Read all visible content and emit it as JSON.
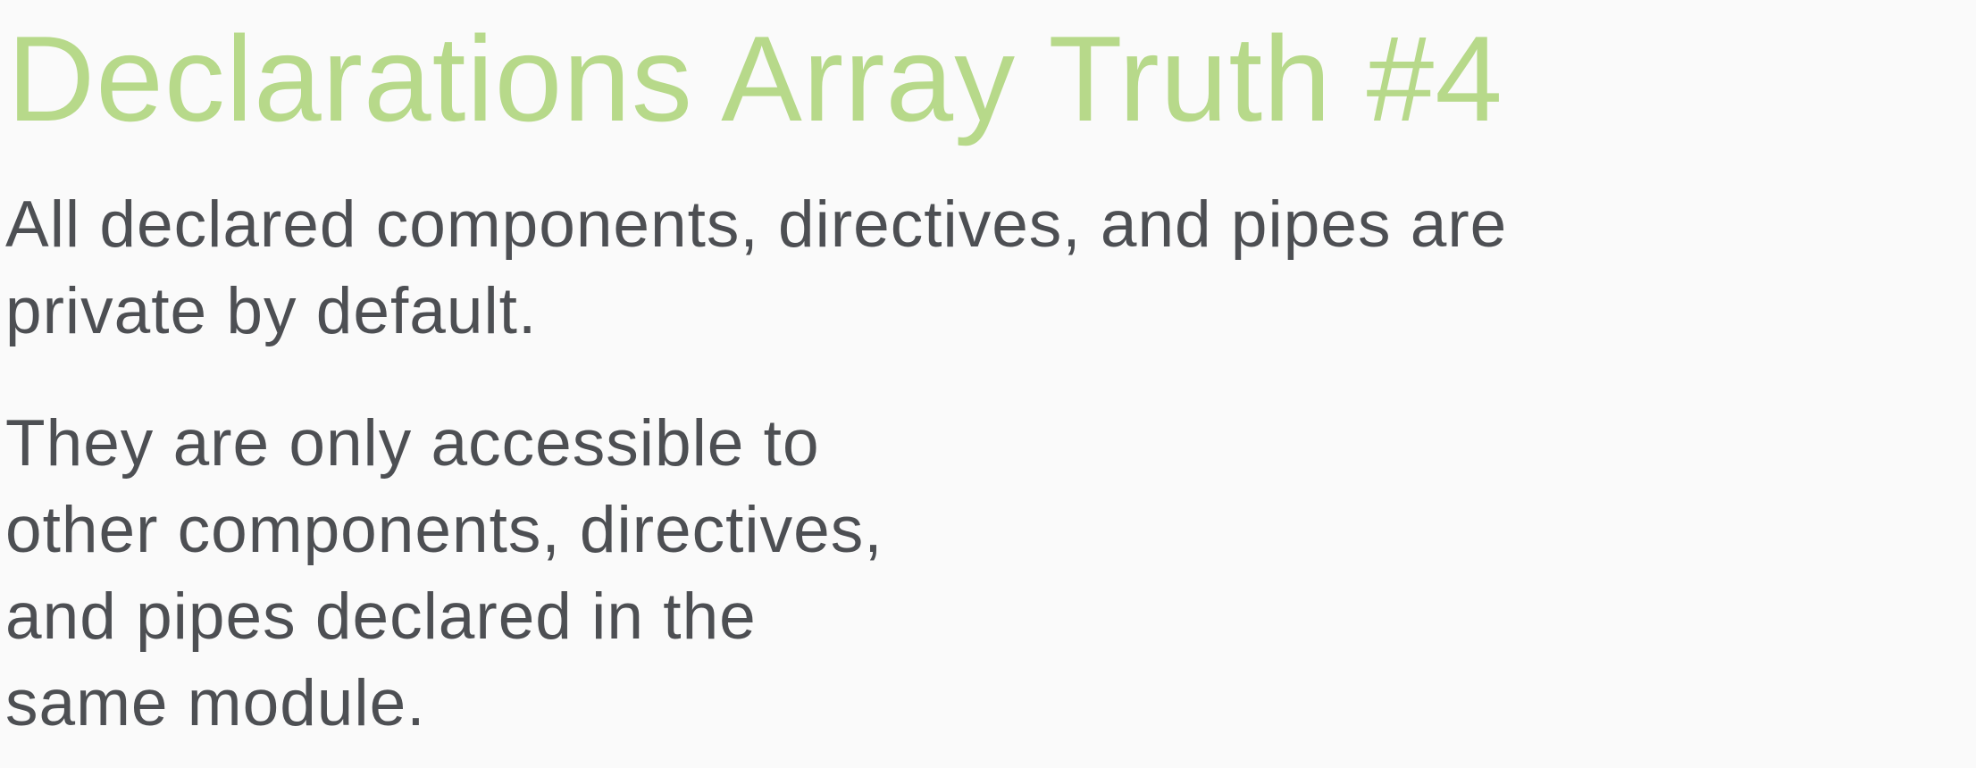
{
  "slide": {
    "title": "Declarations Array Truth #4",
    "paragraphs": [
      {
        "lines": [
          "All declared components, directives, and pipes are",
          "private by default."
        ]
      },
      {
        "lines": [
          "They are only accessible to",
          "other components, directives,",
          "and pipes declared in the",
          "same module."
        ]
      }
    ],
    "colors": {
      "title": "#b7d98a",
      "body": "#4d4f53",
      "background": "#fafafa"
    }
  }
}
